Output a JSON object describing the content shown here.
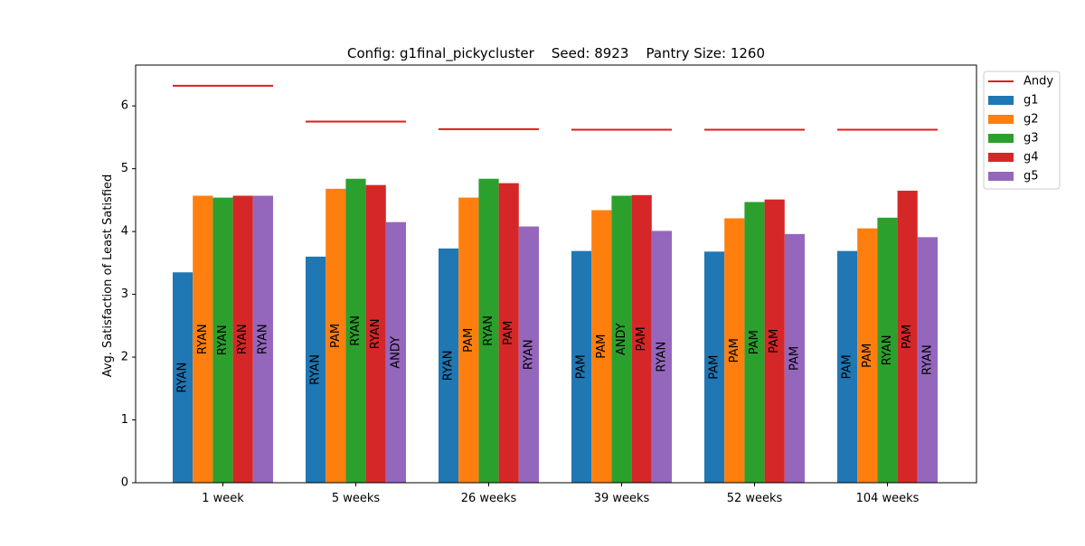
{
  "chart_data": {
    "type": "bar",
    "title": "Config: g1final_pickycluster    Seed: 8923    Pantry Size: 1260",
    "xlabel": "",
    "ylabel": "Avg. Satisfaction of Least Satisfied",
    "ylim": [
      0,
      6.65
    ],
    "yticks": [
      0,
      1,
      2,
      3,
      4,
      5,
      6
    ],
    "categories": [
      "1 week",
      "5 weeks",
      "26 weeks",
      "39 weeks",
      "52 weeks",
      "104 weeks"
    ],
    "series": [
      {
        "name": "g1",
        "color": "#1f77b4",
        "values": [
          3.35,
          3.6,
          3.73,
          3.69,
          3.68,
          3.69
        ],
        "labels": [
          "RYAN",
          "RYAN",
          "RYAN",
          "PAM",
          "PAM",
          "PAM"
        ]
      },
      {
        "name": "g2",
        "color": "#ff7f0e",
        "values": [
          4.57,
          4.68,
          4.54,
          4.34,
          4.21,
          4.05
        ],
        "labels": [
          "RYAN",
          "PAM",
          "PAM",
          "PAM",
          "PAM",
          "PAM"
        ]
      },
      {
        "name": "g3",
        "color": "#2ca02c",
        "values": [
          4.54,
          4.84,
          4.84,
          4.57,
          4.47,
          4.22
        ],
        "labels": [
          "RYAN",
          "RYAN",
          "RYAN",
          "ANDY",
          "PAM",
          "RYAN"
        ]
      },
      {
        "name": "g4",
        "color": "#d62728",
        "values": [
          4.57,
          4.74,
          4.77,
          4.58,
          4.51,
          4.65
        ],
        "labels": [
          "RYAN",
          "RYAN",
          "PAM",
          "PAM",
          "PAM",
          "PAM"
        ]
      },
      {
        "name": "g5",
        "color": "#9467bd",
        "values": [
          4.57,
          4.15,
          4.08,
          4.01,
          3.96,
          3.91
        ],
        "labels": [
          "RYAN",
          "ANDY",
          "RYAN",
          "RYAN",
          "PAM",
          "RYAN"
        ]
      }
    ],
    "reference_line": {
      "name": "Andy",
      "color": "#e31a1c",
      "values": [
        6.32,
        5.75,
        5.63,
        5.62,
        5.62,
        5.62
      ]
    },
    "legend_position": "outside-top-right",
    "legend": [
      "Andy",
      "g1",
      "g2",
      "g3",
      "g4",
      "g5"
    ],
    "grid": false
  }
}
